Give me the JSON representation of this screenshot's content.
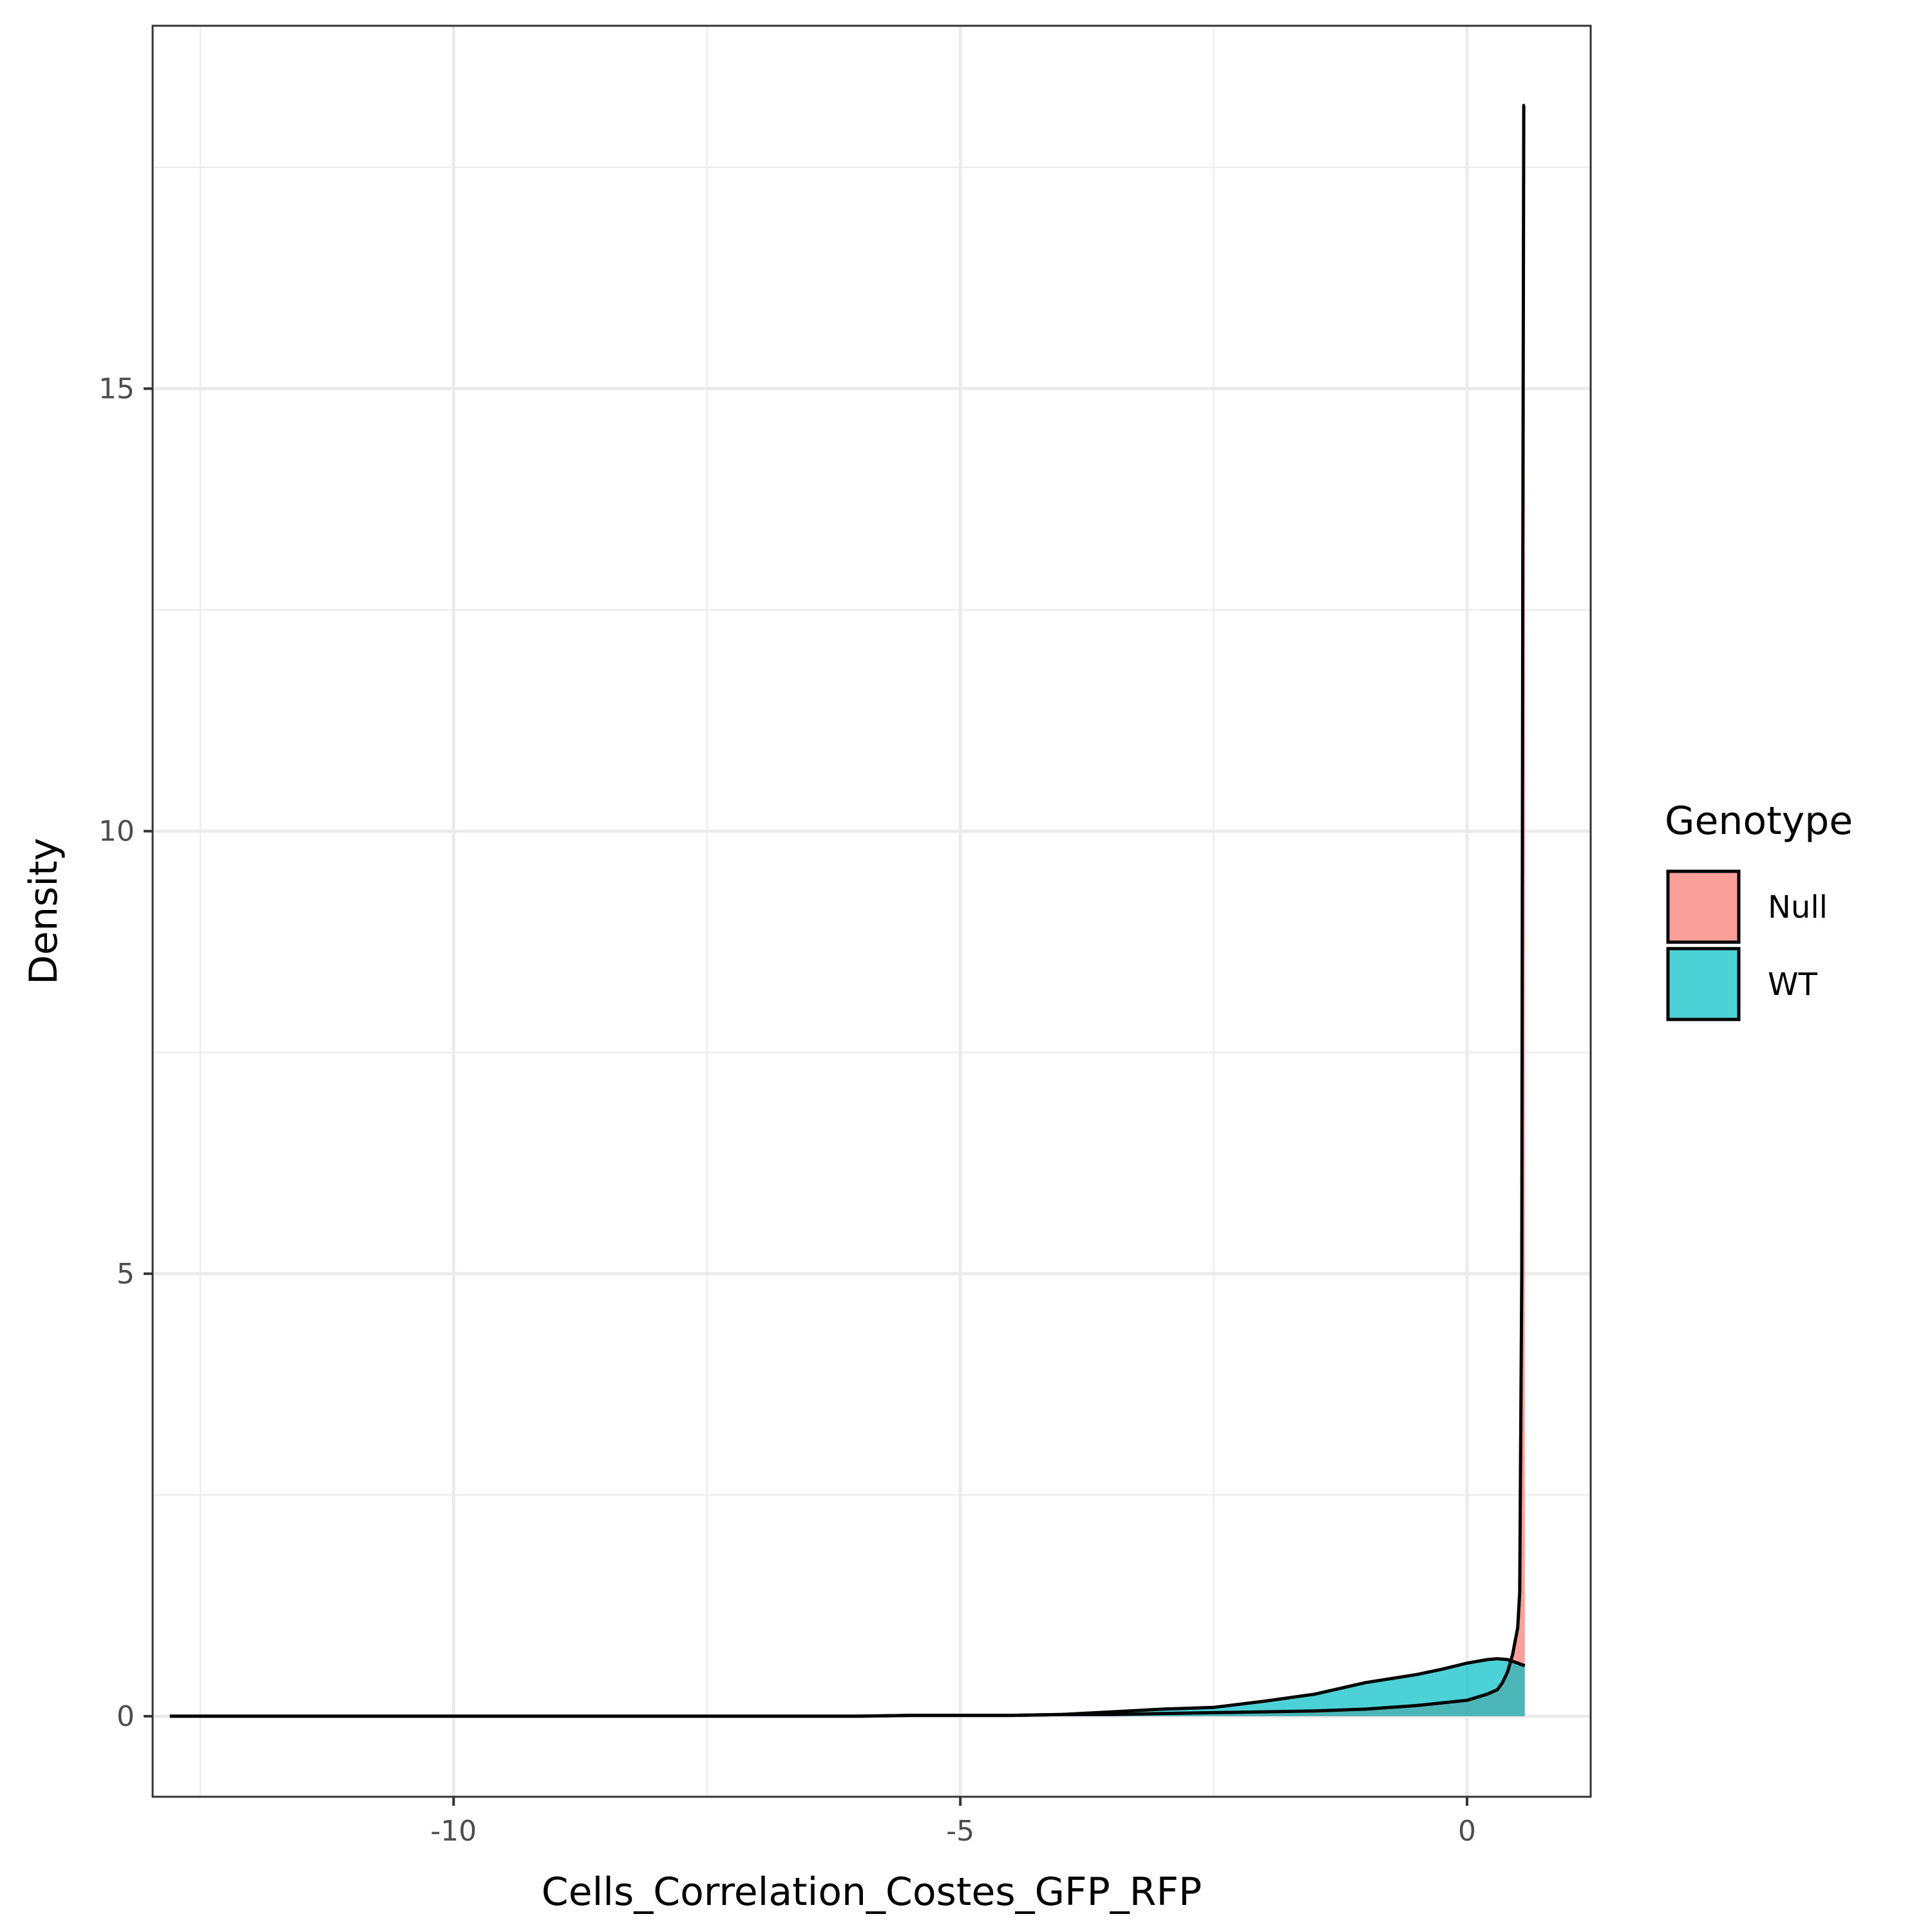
{
  "chart_data": {
    "type": "area",
    "subtype": "density",
    "title": "",
    "xlabel": "Cells_Correlation_Costes_GFP_RFP",
    "ylabel": "Density",
    "xlim": [
      -12.97,
      1.22
    ],
    "ylim": [
      -0.91,
      19.1
    ],
    "x_ticks": [
      -10,
      -5,
      0
    ],
    "x_tick_labels": [
      "-10",
      "-5",
      "0"
    ],
    "y_ticks": [
      0,
      5,
      10,
      15
    ],
    "y_tick_labels": [
      "0",
      "5",
      "10",
      "15"
    ],
    "grid": true,
    "legend": {
      "title": "Genotype",
      "position": "right"
    },
    "series": [
      {
        "name": "Null",
        "color": "#F8766D",
        "x": [
          -12.8,
          -10,
          -8,
          -6,
          -5.5,
          -5,
          -4.5,
          -4,
          -3.5,
          -3,
          -2.5,
          -2,
          -1.5,
          -1,
          -0.5,
          0,
          0.2,
          0.3,
          0.35,
          0.4,
          0.45,
          0.5,
          0.52,
          0.54,
          0.55,
          0.56,
          0.57
        ],
        "y": [
          0,
          0,
          0,
          0,
          0.01,
          0.01,
          0.01,
          0.02,
          0.02,
          0.03,
          0.04,
          0.05,
          0.06,
          0.08,
          0.12,
          0.18,
          0.25,
          0.3,
          0.38,
          0.5,
          0.7,
          1.0,
          1.4,
          5.0,
          13.0,
          18.2,
          18.2
        ]
      },
      {
        "name": "WT",
        "color": "#00BFC4",
        "x": [
          -12.8,
          -10,
          -8,
          -6,
          -5.5,
          -5,
          -4.5,
          -4,
          -3.5,
          -3,
          -2.5,
          -2,
          -1.5,
          -1,
          -0.5,
          -0.25,
          0,
          0.2,
          0.3,
          0.4,
          0.5,
          0.57
        ],
        "y": [
          0,
          0,
          0,
          0,
          0.01,
          0.01,
          0.01,
          0.02,
          0.05,
          0.08,
          0.1,
          0.17,
          0.25,
          0.38,
          0.47,
          0.53,
          0.6,
          0.64,
          0.65,
          0.64,
          0.6,
          0.57
        ]
      }
    ]
  }
}
